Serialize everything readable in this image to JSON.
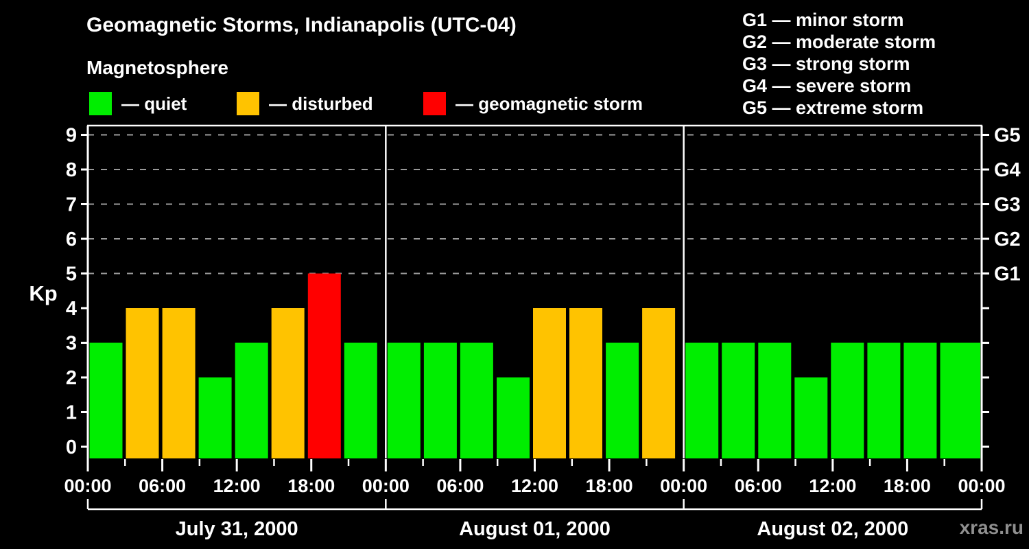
{
  "title": "Geomagnetic Storms, Indianapolis (UTC-04)",
  "subtitle": "Magnetosphere",
  "watermark": "xras.ru",
  "legend": {
    "items": [
      {
        "status": "quiet",
        "label": "— quiet",
        "color": "#00ee00"
      },
      {
        "status": "disturbed",
        "label": "— disturbed",
        "color": "#ffc300"
      },
      {
        "status": "storm",
        "label": "— geomagnetic storm",
        "color": "#ff0000"
      }
    ]
  },
  "storm_scale_legend": [
    "G1 — minor storm",
    "G2 — moderate storm",
    "G3 — strong storm",
    "G4 — severe storm",
    "G5 — extreme storm"
  ],
  "chart_data": {
    "type": "bar",
    "title": "Geomagnetic Storms, Indianapolis (UTC-04)",
    "ylabel": "Kp",
    "ylim": [
      0,
      9
    ],
    "y_ticks": [
      0,
      1,
      2,
      3,
      4,
      5,
      6,
      7,
      8,
      9
    ],
    "grid_levels": [
      5,
      6,
      7,
      8,
      9
    ],
    "grid_on": true,
    "legend_position": "top",
    "right_axis": [
      {
        "kp": 5,
        "label": "G1"
      },
      {
        "kp": 6,
        "label": "G2"
      },
      {
        "kp": 7,
        "label": "G3"
      },
      {
        "kp": 8,
        "label": "G4"
      },
      {
        "kp": 9,
        "label": "G5"
      }
    ],
    "interval_hours": 3,
    "time_labels": [
      "00:00",
      "06:00",
      "12:00",
      "18:00"
    ],
    "end_time_label": "00:00",
    "days": [
      {
        "date": "July 31, 2000",
        "values": [
          3,
          4,
          4,
          2,
          3,
          4,
          5,
          3
        ]
      },
      {
        "date": "August 01, 2000",
        "values": [
          3,
          3,
          3,
          2,
          4,
          4,
          3,
          4
        ]
      },
      {
        "date": "August 02, 2000",
        "values": [
          3,
          3,
          3,
          2,
          3,
          3,
          3,
          3
        ]
      }
    ],
    "next_day_partial_value": 3,
    "thresholds": {
      "disturbed_at": 4,
      "storm_at": 5
    },
    "colors": {
      "quiet": "#00ee00",
      "disturbed": "#ffc300",
      "storm": "#ff0000",
      "axis": "#ffffff",
      "grid": "#9a9a9a",
      "text": "#ffffff",
      "watermark": "#8f8f8f",
      "background": "#000000"
    }
  }
}
